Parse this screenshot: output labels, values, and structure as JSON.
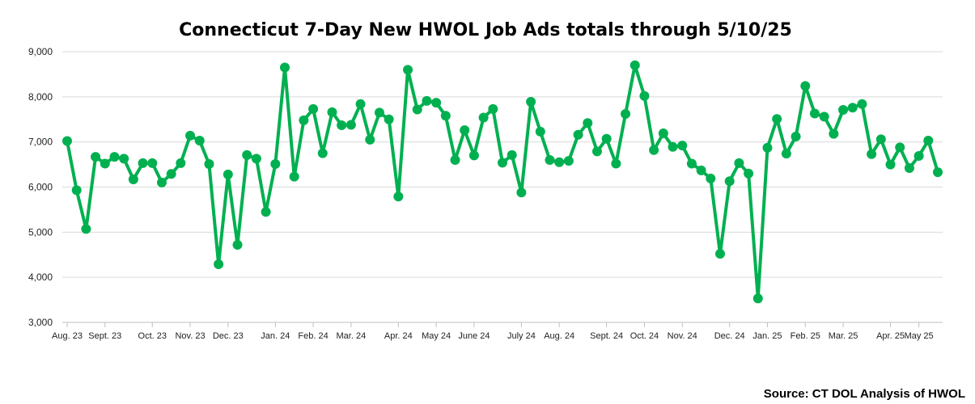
{
  "chart_data": {
    "type": "line",
    "title": "Connecticut 7-Day New HWOL Job Ads totals through 5/10/25",
    "xlabel": "",
    "ylabel": "",
    "ylim": [
      3000,
      9000
    ],
    "yticks": [
      "3,000",
      "4,000",
      "5,000",
      "6,000",
      "7,000",
      "8,000",
      "9,000"
    ],
    "grid": true,
    "legend": "none",
    "series_color": "#00b050",
    "month_labels": [
      {
        "label": "Aug. 23",
        "index": 0
      },
      {
        "label": "Sept. 23",
        "index": 4
      },
      {
        "label": "Oct. 23",
        "index": 9
      },
      {
        "label": "Nov. 23",
        "index": 13
      },
      {
        "label": "Dec. 23",
        "index": 17
      },
      {
        "label": "Jan. 24",
        "index": 22
      },
      {
        "label": "Feb. 24",
        "index": 26
      },
      {
        "label": "Mar. 24",
        "index": 30
      },
      {
        "label": "Apr. 24",
        "index": 35
      },
      {
        "label": "May 24",
        "index": 39
      },
      {
        "label": "June 24",
        "index": 43
      },
      {
        "label": "July 24",
        "index": 48
      },
      {
        "label": "Aug. 24",
        "index": 52
      },
      {
        "label": "Sept. 24",
        "index": 57
      },
      {
        "label": "Oct. 24",
        "index": 61
      },
      {
        "label": "Nov. 24",
        "index": 65
      },
      {
        "label": "Dec. 24",
        "index": 70
      },
      {
        "label": "Jan. 25",
        "index": 74
      },
      {
        "label": "Feb. 25",
        "index": 78
      },
      {
        "label": "Mar. 25",
        "index": 82
      },
      {
        "label": "Apr. 25",
        "index": 87
      },
      {
        "label": "May 25",
        "index": 90
      }
    ],
    "values": [
      7020,
      5930,
      5070,
      6670,
      6520,
      6670,
      6630,
      6170,
      6530,
      6530,
      6100,
      6290,
      6530,
      7140,
      7030,
      6510,
      4290,
      6280,
      4720,
      6710,
      6630,
      5450,
      6510,
      8650,
      6230,
      7480,
      7730,
      6750,
      7660,
      7370,
      7380,
      7840,
      7050,
      7650,
      7500,
      5790,
      8600,
      7720,
      7910,
      7870,
      7580,
      6600,
      7260,
      6700,
      7540,
      7730,
      6540,
      6710,
      5880,
      7890,
      7230,
      6600,
      6550,
      6580,
      7160,
      7420,
      6790,
      7070,
      6520,
      7620,
      8700,
      8020,
      6820,
      7190,
      6890,
      6920,
      6520,
      6370,
      6190,
      4520,
      6130,
      6530,
      6300,
      3530,
      6870,
      7510,
      6740,
      7120,
      8240,
      7630,
      7560,
      7180,
      7710,
      7760,
      7840,
      6730,
      7060,
      6500,
      6880,
      6420,
      6690,
      7030,
      6330
    ]
  },
  "source": "Source: CT DOL Analysis of HWOL"
}
